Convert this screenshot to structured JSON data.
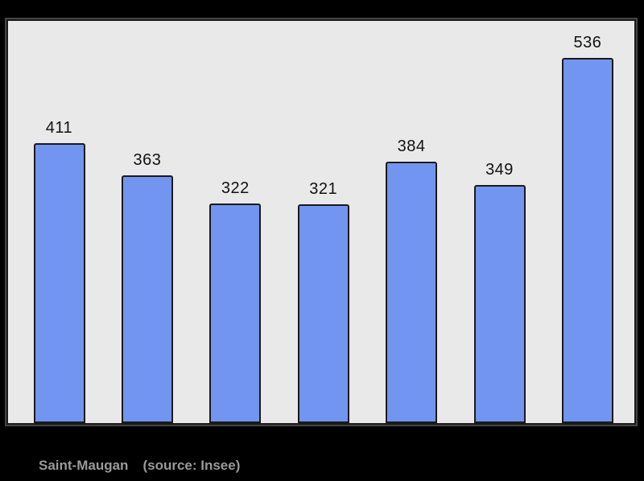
{
  "chart_data": {
    "type": "bar",
    "categories": [
      "",
      "",
      "",
      "",
      "",
      "",
      ""
    ],
    "values": [
      411,
      363,
      322,
      321,
      384,
      349,
      536
    ],
    "bar_labels": [
      "411",
      "363",
      "322",
      "321",
      "384",
      "349",
      "536"
    ],
    "title": "",
    "xlabel": "",
    "ylabel": "",
    "ylim": [
      0,
      590
    ],
    "grid": false,
    "legend": false,
    "bar_color": "#7295f1",
    "bar_border_color": "#1a1a1a",
    "value_label_color": "#111111",
    "panel_background": "#e9e9e9",
    "page_background": "#000000"
  },
  "caption": {
    "place": "Saint-Maugan",
    "source": "(source: Insee)",
    "color": "#999999"
  }
}
